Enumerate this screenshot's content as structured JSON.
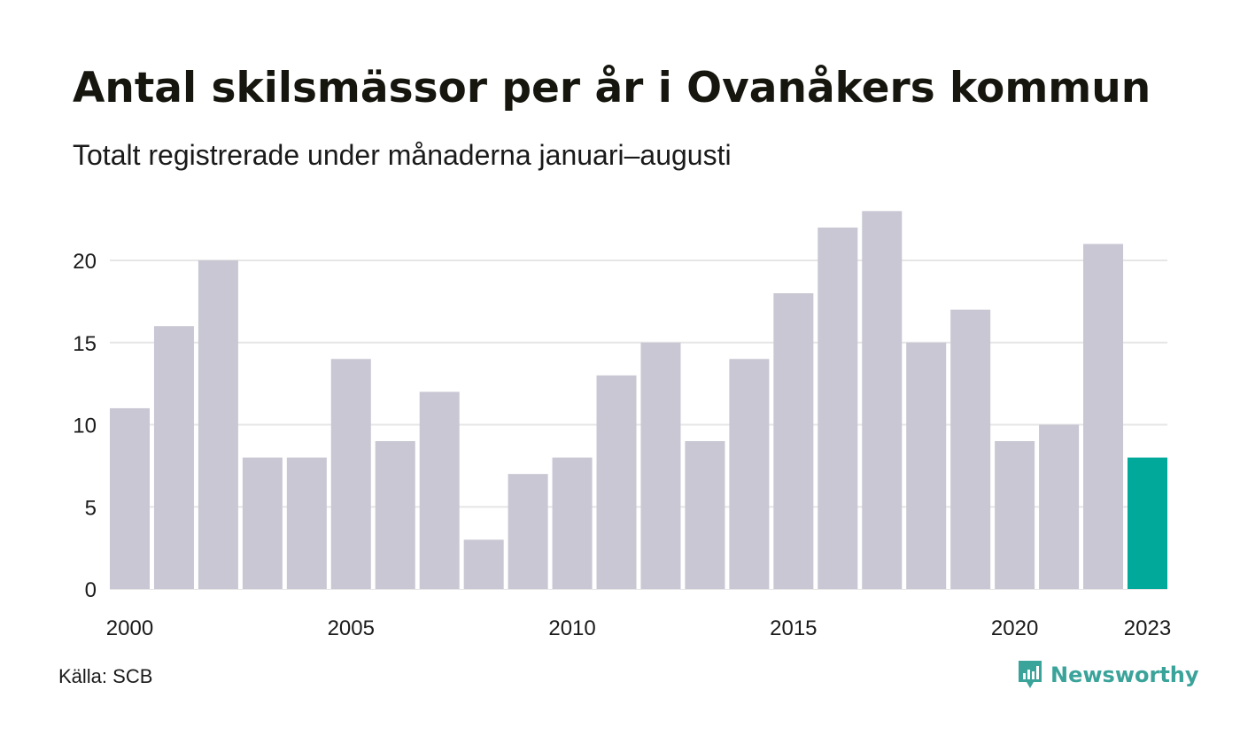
{
  "title": "Antal skilsmässor per år i Ovanåkers kommun",
  "subtitle": "Totalt registrerade under månaderna januari–augusti",
  "source": "Källa: SCB",
  "brand": {
    "name": "Newsworthy",
    "icon": "newsworthy-logo-icon",
    "color": "#3aa39a"
  },
  "colors": {
    "bar": "#c8c7d3",
    "highlight": "#00a99a",
    "grid": "#e6e6e6",
    "text": "#1a1a1a"
  },
  "chart_data": {
    "type": "bar",
    "title": "Antal skilsmässor per år i Ovanåkers kommun",
    "subtitle": "Totalt registrerade under månaderna januari–augusti",
    "categories": [
      "2000",
      "2001",
      "2002",
      "2003",
      "2004",
      "2005",
      "2006",
      "2007",
      "2008",
      "2009",
      "2010",
      "2011",
      "2012",
      "2013",
      "2014",
      "2015",
      "2016",
      "2017",
      "2018",
      "2019",
      "2020",
      "2021",
      "2022",
      "2023"
    ],
    "values": [
      11,
      16,
      20,
      8,
      8,
      14,
      9,
      12,
      3,
      7,
      8,
      13,
      15,
      9,
      14,
      18,
      22,
      23,
      15,
      17,
      9,
      10,
      21,
      8
    ],
    "highlight_category": "2023",
    "ylim": [
      0,
      23
    ],
    "yticks": [
      0,
      5,
      10,
      15,
      20
    ],
    "xtick_labels": [
      "2000",
      "2005",
      "2010",
      "2015",
      "2020",
      "2023"
    ],
    "xlabel": "",
    "ylabel": "",
    "grid": true,
    "legend": "none"
  }
}
